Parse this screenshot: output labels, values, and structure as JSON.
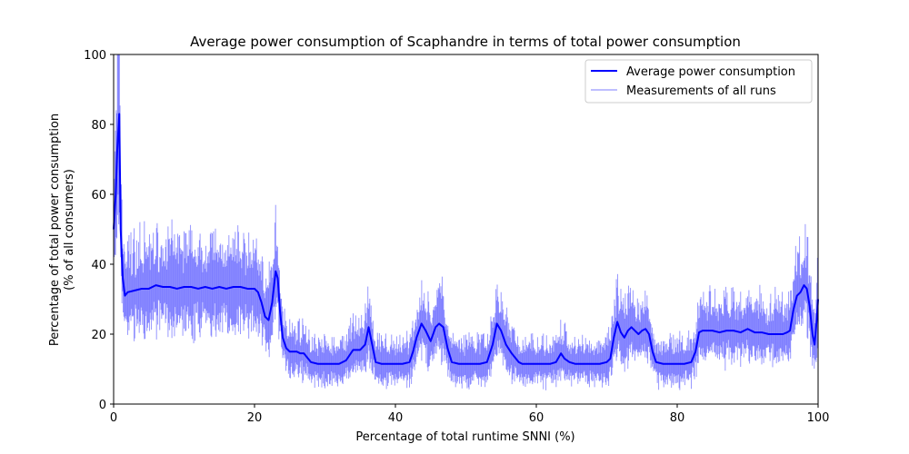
{
  "chart_data": {
    "type": "line",
    "title": "Average power consumption of Scaphandre in terms of total power consumption",
    "xlabel": "Percentage of total runtime SNNI (%)",
    "ylabel_line1": "Percentage of total power consumption",
    "ylabel_line2": "(% of all consumers)",
    "xlim": [
      0,
      100
    ],
    "ylim": [
      0,
      100
    ],
    "xticks": [
      0,
      20,
      40,
      60,
      80,
      100
    ],
    "yticks": [
      0,
      20,
      40,
      60,
      80,
      100
    ],
    "grid": false,
    "legend_placement": "top-right",
    "colors": {
      "average": "#0000ff",
      "runs": "#4444ff"
    },
    "series": [
      {
        "name": "Average power consumption",
        "x": [
          0,
          0.3,
          0.5,
          0.8,
          1.0,
          1.3,
          1.6,
          2,
          3,
          4,
          5,
          6,
          7,
          8,
          9,
          10,
          11,
          12,
          13,
          14,
          15,
          16,
          17,
          18,
          19,
          20,
          20.5,
          21,
          21.5,
          22,
          22.5,
          23,
          23.3,
          23.6,
          24,
          24.5,
          25,
          26,
          26.5,
          27,
          28,
          29,
          30,
          31,
          32,
          33,
          34,
          35,
          35.7,
          36.2,
          36.7,
          37.2,
          38,
          39,
          40,
          41,
          42,
          42.5,
          43,
          43.7,
          44.3,
          45,
          45.7,
          46.2,
          46.8,
          47.4,
          48,
          49,
          50,
          51,
          52,
          53,
          53.8,
          54.4,
          55,
          55.7,
          56.5,
          57.5,
          58,
          59,
          60,
          61,
          62,
          62.8,
          63.5,
          64,
          64.7,
          65.5,
          66,
          67,
          68,
          69,
          70,
          70.5,
          71,
          71.5,
          72,
          72.5,
          73,
          73.5,
          74,
          74.5,
          75,
          75.5,
          76,
          76.5,
          77,
          78,
          79,
          80,
          81,
          82,
          82.6,
          83.1,
          83.6,
          84.5,
          85,
          86,
          87,
          88,
          89,
          90,
          91,
          92,
          93,
          94,
          95,
          95.6,
          96,
          96.5,
          97,
          97.5,
          98,
          98.4,
          98.8,
          99.2,
          99.5,
          99.8,
          100
        ],
        "y": [
          50,
          60,
          72,
          83,
          50,
          36,
          31,
          32,
          32.5,
          33,
          33,
          34,
          33.5,
          33.5,
          33,
          33.5,
          33.5,
          33,
          33.5,
          33,
          33.5,
          33,
          33.5,
          33.5,
          33,
          33,
          32,
          29,
          25,
          24,
          29,
          38,
          36,
          27,
          19,
          16,
          15,
          15,
          14.5,
          14.5,
          12,
          11.5,
          11.5,
          11.5,
          11.5,
          12.5,
          15.5,
          15.5,
          17,
          22,
          17,
          12,
          11.5,
          11.5,
          11.5,
          11.5,
          12,
          15,
          19,
          23,
          21,
          18,
          22,
          23,
          22,
          16,
          12,
          11.5,
          11.5,
          11.5,
          11.5,
          12,
          17,
          23,
          21,
          17,
          14.5,
          12,
          11.5,
          11.5,
          11.5,
          11.5,
          11.5,
          12,
          14.5,
          13,
          12,
          11.5,
          11.5,
          11.5,
          11.5,
          11.5,
          12,
          13,
          19,
          23.5,
          20.5,
          19,
          21,
          22,
          21,
          20,
          21,
          21.5,
          20,
          15,
          12,
          11.5,
          11.5,
          11.5,
          11.5,
          12,
          15,
          20.5,
          21,
          21,
          21,
          20.5,
          21,
          21,
          20.5,
          21.5,
          20.5,
          20.5,
          20,
          20,
          20,
          20.5,
          21,
          27,
          31,
          32,
          34,
          33,
          28,
          20,
          17,
          24,
          30
        ]
      },
      {
        "name": "Measurements of all runs"
      }
    ]
  }
}
